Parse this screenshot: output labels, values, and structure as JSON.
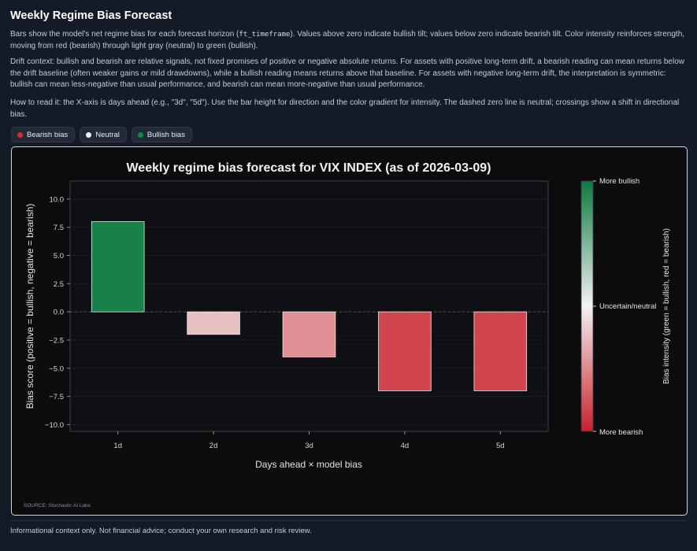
{
  "page": {
    "title": "Weekly Regime Bias Forecast",
    "para1_before_code": "Bars show the model's net regime bias for each forecast horizon (",
    "para1_code": "ft_timeframe",
    "para1_after_code": "). Values above zero indicate bullish tilt; values below zero indicate bearish tilt. Color intensity reinforces strength, moving from red (bearish) through light gray (neutral) to green (bullish).",
    "para2": "Drift context: bullish and bearish are relative signals, not fixed promises of positive or negative absolute returns. For assets with positive long-term drift, a bearish reading can mean returns below the drift baseline (often weaker gains or mild drawdowns), while a bullish reading means returns above that baseline. For assets with negative long-term drift, the interpretation is symmetric: bullish can mean less-negative than usual performance, and bearish can mean more-negative than usual performance.",
    "para3": "How to read it: the X-axis is days ahead (e.g., \"3d\", \"5d\"). Use the bar height for direction and the color gradient for intensity. The dashed zero line is neutral; crossings show a shift in directional bias.",
    "footer": "Informational context only. Not financial advice; conduct your own research and risk review."
  },
  "legend_chips": [
    {
      "label": "Bearish bias",
      "color": "#d1303a"
    },
    {
      "label": "Neutral",
      "color": "#f2f2f2"
    },
    {
      "label": "Bullish bias",
      "color": "#0f8a4a"
    }
  ],
  "chart_data": {
    "type": "bar",
    "title": "Weekly regime bias forecast for VIX INDEX (as of 2026-03-09)",
    "xlabel": "Days ahead × model bias",
    "ylabel": "Bias score (positive = bullish, negative = bearish)",
    "categories": [
      "1d",
      "2d",
      "3d",
      "4d",
      "5d"
    ],
    "values": [
      8,
      -2,
      -4,
      -7,
      -7
    ],
    "ylim": [
      -10.6,
      11.6
    ],
    "yticks": [
      "10.0",
      "7.5",
      "5.0",
      "2.5",
      "0.0",
      "−2.5",
      "−5.0",
      "−7.5",
      "−10.0"
    ],
    "ytick_values": [
      10,
      7.5,
      5,
      2.5,
      0,
      -2.5,
      -5,
      -7.5,
      -10
    ],
    "zero_line": "dashed",
    "grid": true,
    "colorbar": {
      "label": "Bias intensity (green = bullish, red = bearish)",
      "top_label": "More bullish",
      "mid_label": "Uncertain/neutral",
      "bottom_label": "More bearish",
      "colors": [
        "#0a7a3e",
        "#f4f2f2",
        "#c9202b"
      ]
    },
    "source": "SOURCE: Stochastic AI Labs"
  }
}
